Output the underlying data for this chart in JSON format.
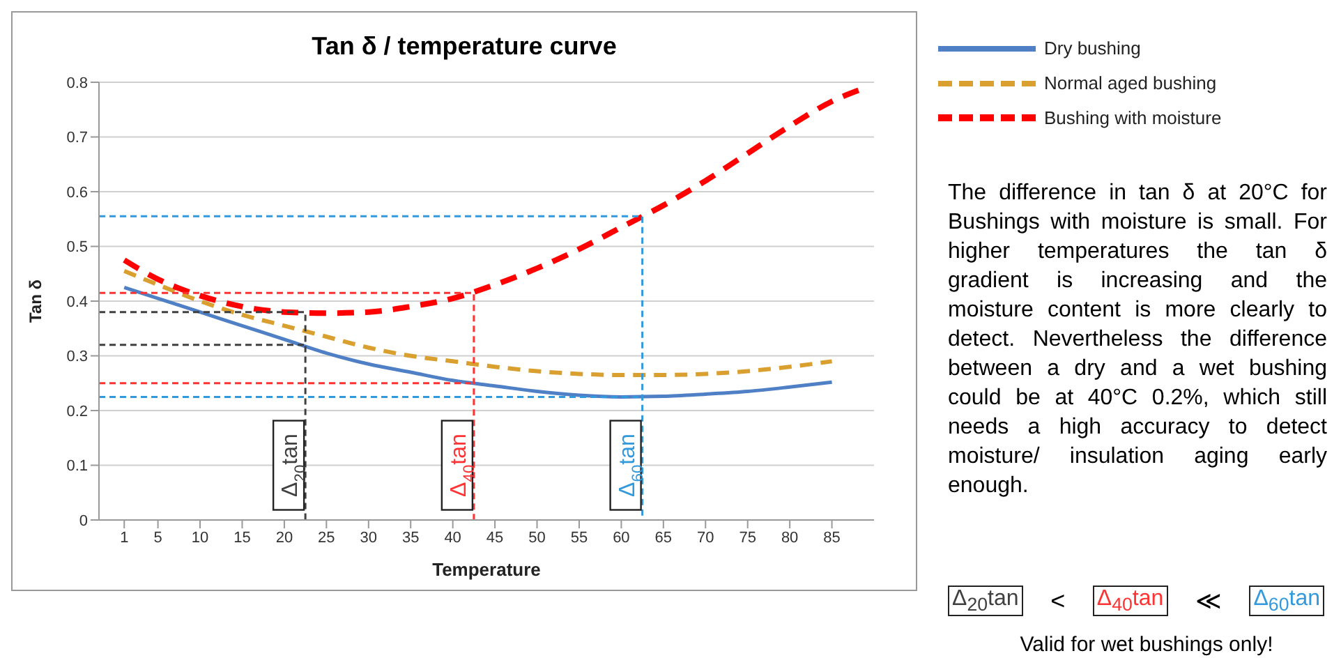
{
  "chart_data": {
    "type": "line",
    "title": "Tan δ / temperature curve",
    "xlabel": "Temperature",
    "ylabel": "Tan δ",
    "xlim": [
      -2,
      90
    ],
    "xticks": [
      1,
      5,
      10,
      15,
      20,
      25,
      30,
      35,
      40,
      45,
      50,
      55,
      60,
      65,
      70,
      75,
      80,
      85
    ],
    "ylim": [
      0,
      0.8
    ],
    "yticks": [
      0,
      0.1,
      0.2,
      0.3,
      0.4,
      0.5,
      0.6,
      0.7,
      0.8
    ],
    "grid": "y",
    "legend": "right",
    "marker": "none",
    "series": [
      {
        "name": "Dry bushing",
        "color": "#4f7fc4",
        "line_style": "solid",
        "x": [
          1,
          5,
          10,
          15,
          20,
          25,
          30,
          35,
          40,
          45,
          50,
          55,
          60,
          65,
          70,
          75,
          80,
          85
        ],
        "values": [
          0.425,
          0.405,
          0.38,
          0.355,
          0.33,
          0.305,
          0.285,
          0.27,
          0.255,
          0.245,
          0.235,
          0.228,
          0.225,
          0.226,
          0.23,
          0.235,
          0.243,
          0.252
        ]
      },
      {
        "name": "Normal aged bushing",
        "color": "#d9a030",
        "line_style": "dashed",
        "x": [
          1,
          5,
          10,
          15,
          20,
          25,
          30,
          35,
          40,
          45,
          50,
          55,
          60,
          65,
          70,
          75,
          80,
          85
        ],
        "values": [
          0.455,
          0.43,
          0.4,
          0.375,
          0.355,
          0.335,
          0.315,
          0.3,
          0.29,
          0.28,
          0.272,
          0.267,
          0.265,
          0.265,
          0.267,
          0.272,
          0.28,
          0.29
        ]
      },
      {
        "name": "Bushing with moisture",
        "color": "#ff0000",
        "line_style": "dashed",
        "x": [
          1,
          5,
          10,
          15,
          20,
          25,
          30,
          35,
          40,
          45,
          50,
          55,
          60,
          65,
          70,
          75,
          80,
          85,
          89
        ],
        "values": [
          0.475,
          0.44,
          0.41,
          0.39,
          0.38,
          0.378,
          0.38,
          0.39,
          0.405,
          0.43,
          0.46,
          0.495,
          0.535,
          0.575,
          0.62,
          0.67,
          0.72,
          0.765,
          0.79
        ]
      },
      {
        "type": "line",
        "color": "#404040",
        "line_style": "dashed",
        "x": [
          -2,
          22.5,
          22.5
        ],
        "values": [
          0.38,
          0.38,
          0
        ]
      },
      {
        "type": "line",
        "color": "#404040",
        "line_style": "dashed",
        "x": [
          -2,
          22.5
        ],
        "values": [
          0.32,
          0.32
        ]
      },
      {
        "type": "line",
        "color": "#ff3333",
        "line_style": "dashed",
        "x": [
          -2,
          42.5,
          42.5
        ],
        "values": [
          0.415,
          0.415,
          0
        ]
      },
      {
        "type": "line",
        "color": "#ff3333",
        "line_style": "dashed",
        "x": [
          -2,
          42.5
        ],
        "values": [
          0.25,
          0.25
        ]
      },
      {
        "type": "line",
        "color": "#3399dd",
        "line_style": "dashed",
        "x": [
          -2,
          62.5,
          62.5
        ],
        "values": [
          0.555,
          0.555,
          0
        ]
      },
      {
        "type": "line",
        "color": "#3399dd",
        "line_style": "dashed",
        "x": [
          -2,
          62.5
        ],
        "values": [
          0.225,
          0.225
        ]
      }
    ],
    "annotations": [
      {
        "text": "Δ$_{20}$tan",
        "x": 22.5,
        "y": 0.1
      },
      {
        "text": "Δ$_{40}$tan",
        "x": 42.5,
        "y": 0.1
      },
      {
        "text": "Δ$_{60}$tan",
        "x": 62.5,
        "y": 0.1
      },
      "The difference in tan δ at 20°C for Bushings with moisture is small. For higher temperatures the tan δ gradient is increasing and the moisture content is more clearly to detect. Nevertheless the difference between a dry and a wet bushing could be at 40°C 0.2%, which still needs a high accuracy to detect moisture/ insulation aging early enough.",
      "Δ$_{20}$tan < Δ$_{40}$tan ≪ Δ$_{60}$tan",
      "Valid for wet bushings only!"
    ]
  }
}
